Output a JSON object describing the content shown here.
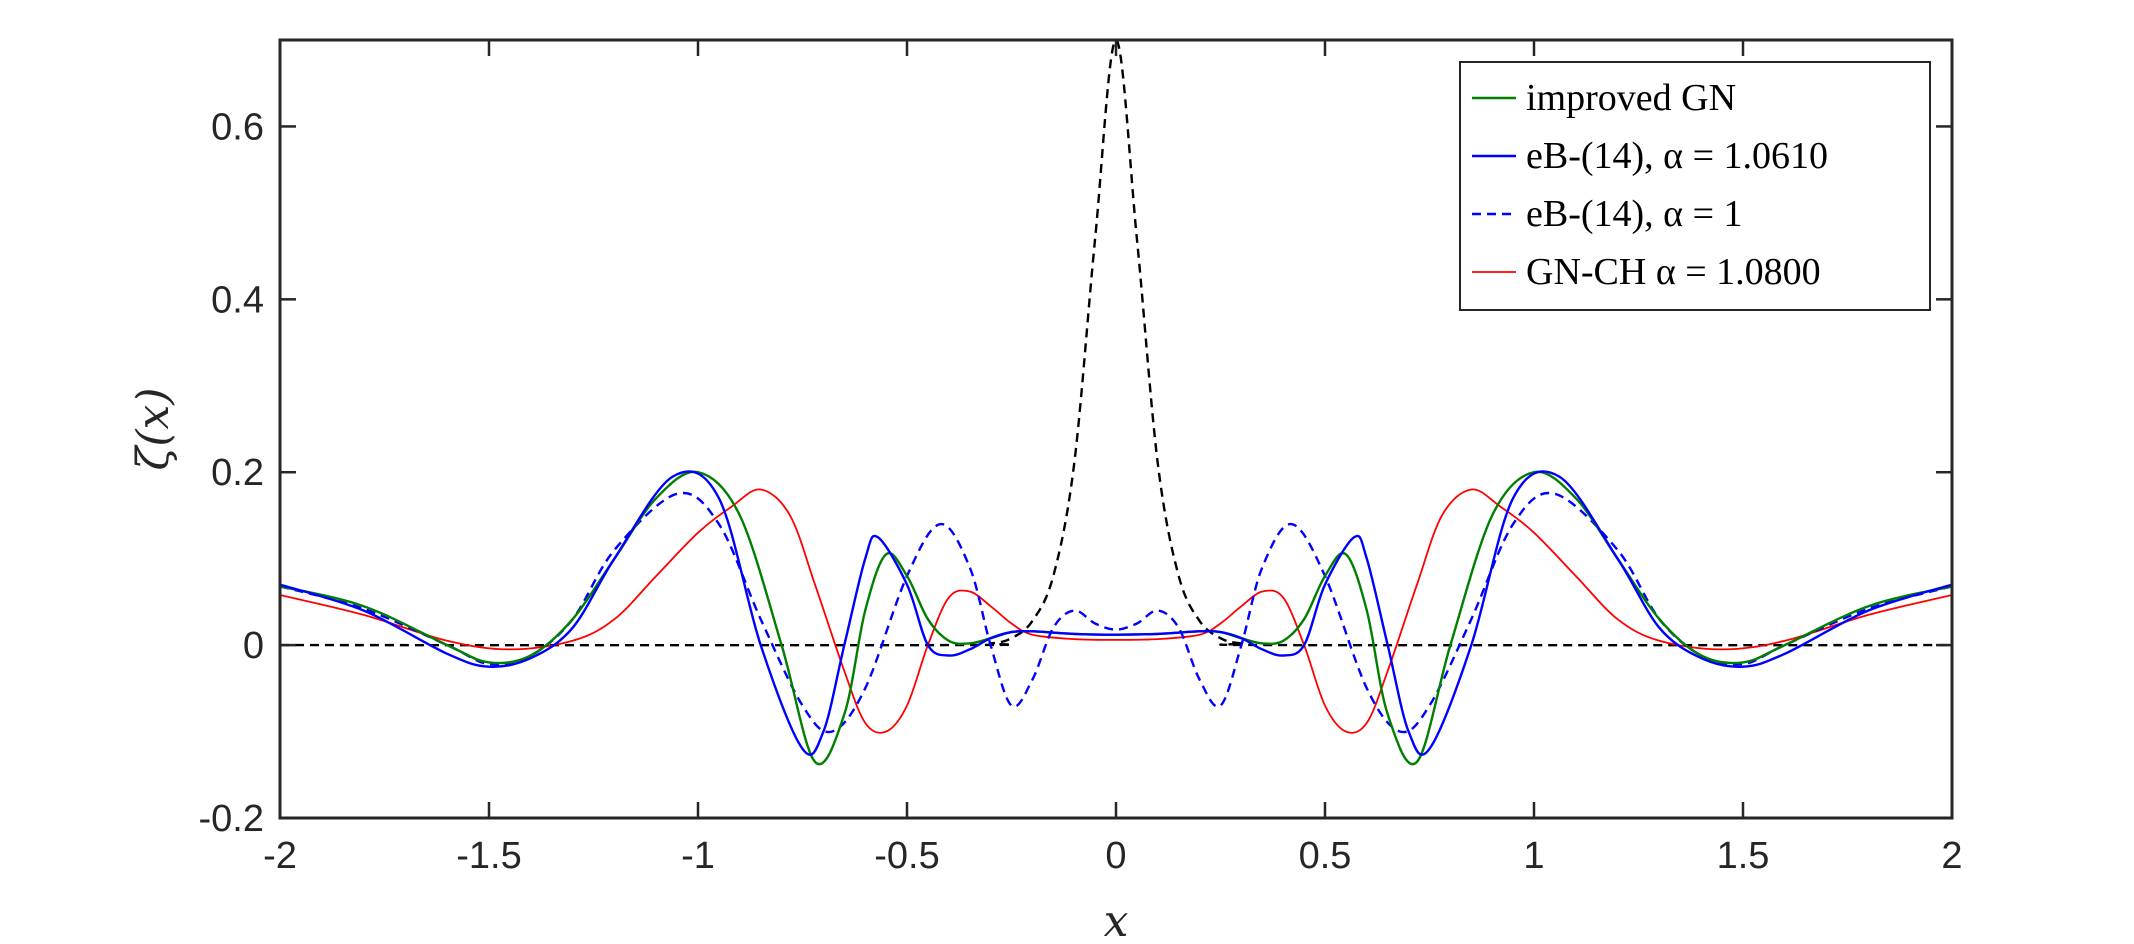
{
  "chart_data": {
    "type": "line",
    "xlabel": "x",
    "ylabel": "ζ(x)",
    "xlim": [
      -2,
      2
    ],
    "ylim": [
      -0.2,
      0.7
    ],
    "xticks": [
      -2,
      -1.5,
      -1,
      -0.5,
      0,
      0.5,
      1,
      1.5,
      2
    ],
    "xtick_labels": [
      "-2",
      "-1.5",
      "-1",
      "-0.5",
      "0",
      "0.5",
      "1",
      "1.5",
      "2"
    ],
    "yticks": [
      -0.2,
      0,
      0.2,
      0.4,
      0.6
    ],
    "ytick_labels": [
      "-0.2",
      "0",
      "0.2",
      "0.4",
      "0.6"
    ],
    "grid": false,
    "legend_position": "top-right",
    "series": [
      {
        "name": "improved GN",
        "color": "#007f00",
        "style": "solid",
        "x": [
          -2,
          -1.8,
          -1.6,
          -1.5,
          -1.4,
          -1.3,
          -1.2,
          -1.1,
          -1.0,
          -0.9,
          -0.8,
          -0.72,
          -0.65,
          -0.6,
          -0.55,
          -0.5,
          -0.45,
          -0.4,
          -0.35,
          -0.3,
          -0.25,
          -0.2,
          -0.1,
          0,
          0.1,
          0.2,
          0.25,
          0.3,
          0.35,
          0.4,
          0.45,
          0.5,
          0.55,
          0.6,
          0.65,
          0.72,
          0.8,
          0.9,
          1.0,
          1.1,
          1.2,
          1.3,
          1.4,
          1.5,
          1.6,
          1.8,
          2
        ],
        "y": [
          0.068,
          0.045,
          0.0,
          -0.02,
          -0.012,
          0.03,
          0.1,
          0.17,
          0.2,
          0.15,
          0.0,
          -0.135,
          -0.08,
          0.04,
          0.105,
          0.08,
          0.03,
          0.005,
          0.002,
          0.008,
          0.015,
          0.016,
          0.013,
          0.012,
          0.013,
          0.016,
          0.015,
          0.008,
          0.002,
          0.005,
          0.03,
          0.08,
          0.105,
          0.04,
          -0.08,
          -0.135,
          0.0,
          0.15,
          0.2,
          0.17,
          0.1,
          0.03,
          -0.012,
          -0.02,
          0.0,
          0.045,
          0.068
        ]
      },
      {
        "name": "eB-(14), α = 1.0610",
        "color": "#0000ff",
        "style": "solid",
        "x": [
          -2,
          -1.8,
          -1.6,
          -1.5,
          -1.4,
          -1.3,
          -1.2,
          -1.06,
          -0.95,
          -0.85,
          -0.75,
          -0.7,
          -0.65,
          -0.6,
          -0.57,
          -0.5,
          -0.45,
          -0.4,
          -0.35,
          -0.3,
          -0.25,
          -0.2,
          -0.1,
          0,
          0.1,
          0.2,
          0.25,
          0.3,
          0.35,
          0.4,
          0.45,
          0.5,
          0.57,
          0.6,
          0.65,
          0.7,
          0.75,
          0.85,
          0.95,
          1.06,
          1.2,
          1.3,
          1.4,
          1.5,
          1.6,
          1.8,
          2
        ],
        "y": [
          0.07,
          0.04,
          -0.01,
          -0.025,
          -0.015,
          0.02,
          0.1,
          0.195,
          0.17,
          0.0,
          -0.12,
          -0.1,
          0.0,
          0.1,
          0.125,
          0.07,
          0.0,
          -0.012,
          -0.005,
          0.008,
          0.015,
          0.016,
          0.013,
          0.012,
          0.013,
          0.016,
          0.015,
          0.008,
          -0.005,
          -0.012,
          0.0,
          0.07,
          0.125,
          0.1,
          0.0,
          -0.1,
          -0.12,
          0.0,
          0.17,
          0.195,
          0.1,
          0.02,
          -0.015,
          -0.025,
          -0.01,
          0.04,
          0.07
        ]
      },
      {
        "name": "eB-(14), α = 1",
        "color": "#0000ff",
        "style": "dashed",
        "x": [
          -2,
          -1.8,
          -1.6,
          -1.5,
          -1.4,
          -1.3,
          -1.2,
          -1.05,
          -0.95,
          -0.85,
          -0.75,
          -0.68,
          -0.6,
          -0.5,
          -0.42,
          -0.35,
          -0.3,
          -0.25,
          -0.2,
          -0.15,
          -0.1,
          -0.05,
          0,
          0.05,
          0.1,
          0.15,
          0.2,
          0.25,
          0.3,
          0.35,
          0.42,
          0.5,
          0.6,
          0.68,
          0.75,
          0.85,
          0.95,
          1.05,
          1.2,
          1.3,
          1.4,
          1.5,
          1.6,
          1.8,
          2
        ],
        "y": [
          0.068,
          0.042,
          0.0,
          -0.022,
          -0.012,
          0.03,
          0.11,
          0.175,
          0.14,
          0.03,
          -0.07,
          -0.1,
          -0.05,
          0.08,
          0.14,
          0.09,
          0.0,
          -0.07,
          -0.04,
          0.02,
          0.04,
          0.025,
          0.018,
          0.025,
          0.04,
          0.02,
          -0.04,
          -0.07,
          0.0,
          0.09,
          0.14,
          0.08,
          -0.05,
          -0.1,
          -0.07,
          0.03,
          0.14,
          0.175,
          0.11,
          0.03,
          -0.012,
          -0.022,
          0.0,
          0.042,
          0.068
        ]
      },
      {
        "name": "GN-CH α = 1.0800",
        "color": "#ff0000",
        "style": "solid",
        "x": [
          -2,
          -1.8,
          -1.6,
          -1.45,
          -1.3,
          -1.2,
          -1.1,
          -1.0,
          -0.92,
          -0.85,
          -0.78,
          -0.72,
          -0.65,
          -0.6,
          -0.55,
          -0.5,
          -0.45,
          -0.4,
          -0.35,
          -0.3,
          -0.25,
          -0.2,
          -0.1,
          0,
          0.1,
          0.2,
          0.25,
          0.3,
          0.35,
          0.4,
          0.45,
          0.5,
          0.55,
          0.6,
          0.65,
          0.72,
          0.78,
          0.85,
          0.92,
          1.0,
          1.1,
          1.2,
          1.3,
          1.45,
          1.6,
          1.8,
          2
        ],
        "y": [
          0.058,
          0.035,
          0.005,
          -0.005,
          0.005,
          0.03,
          0.08,
          0.13,
          0.16,
          0.18,
          0.15,
          0.07,
          -0.03,
          -0.09,
          -0.1,
          -0.07,
          0.0,
          0.055,
          0.062,
          0.045,
          0.025,
          0.012,
          0.007,
          0.006,
          0.007,
          0.012,
          0.025,
          0.045,
          0.062,
          0.055,
          0.0,
          -0.07,
          -0.1,
          -0.09,
          -0.03,
          0.07,
          0.15,
          0.18,
          0.16,
          0.13,
          0.08,
          0.03,
          0.005,
          -0.005,
          0.005,
          0.035,
          0.058
        ]
      },
      {
        "name": "",
        "color": "#000000",
        "style": "dashed",
        "x": [
          -2,
          -0.4,
          -0.3,
          -0.25,
          -0.2,
          -0.15,
          -0.1,
          -0.05,
          0,
          0.05,
          0.1,
          0.15,
          0.2,
          0.25,
          0.3,
          0.4,
          2
        ],
        "y": [
          0,
          0,
          0.002,
          0.008,
          0.028,
          0.08,
          0.21,
          0.47,
          0.7,
          0.47,
          0.21,
          0.08,
          0.028,
          0.008,
          0.002,
          0,
          0
        ]
      }
    ]
  }
}
